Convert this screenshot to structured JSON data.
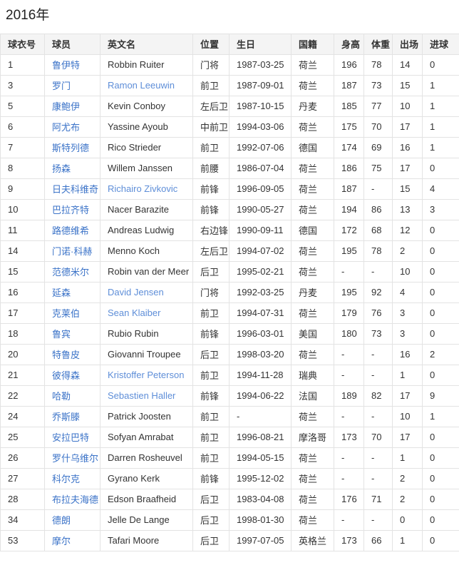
{
  "title": "2016年",
  "colors": {
    "player_link_blue": "#3b73c8",
    "english_link_blue": "#5e8ed8",
    "header_background": "#f4f4f4",
    "table_border": "#e3e3e3",
    "text": "#333333"
  },
  "table": {
    "headers": [
      "球衣号",
      "球员",
      "英文名",
      "位置",
      "生日",
      "国籍",
      "身高",
      "体重",
      "出场",
      "进球"
    ],
    "rows": [
      {
        "jersey": "1",
        "player": "鲁伊特",
        "en_name": "Robbin Ruiter",
        "en_link": false,
        "position": "门将",
        "birthday": "1987-03-25",
        "nationality": "荷兰",
        "height": "196",
        "weight": "78",
        "appearances": "14",
        "goals": "0"
      },
      {
        "jersey": "3",
        "player": "罗门",
        "en_name": "Ramon Leeuwin",
        "en_link": true,
        "position": "前卫",
        "birthday": "1987-09-01",
        "nationality": "荷兰",
        "height": "187",
        "weight": "73",
        "appearances": "15",
        "goals": "1"
      },
      {
        "jersey": "5",
        "player": "康鲍伊",
        "en_name": "Kevin Conboy",
        "en_link": false,
        "position": "左后卫",
        "birthday": "1987-10-15",
        "nationality": "丹麦",
        "height": "185",
        "weight": "77",
        "appearances": "10",
        "goals": "1"
      },
      {
        "jersey": "6",
        "player": "阿尤布",
        "en_name": "Yassine Ayoub",
        "en_link": false,
        "position": "中前卫",
        "birthday": "1994-03-06",
        "nationality": "荷兰",
        "height": "175",
        "weight": "70",
        "appearances": "17",
        "goals": "1"
      },
      {
        "jersey": "7",
        "player": "斯特列德",
        "en_name": "Rico Strieder",
        "en_link": false,
        "position": "前卫",
        "birthday": "1992-07-06",
        "nationality": "德国",
        "height": "174",
        "weight": "69",
        "appearances": "16",
        "goals": "1"
      },
      {
        "jersey": "8",
        "player": "扬森",
        "en_name": "Willem Janssen",
        "en_link": false,
        "position": "前腰",
        "birthday": "1986-07-04",
        "nationality": "荷兰",
        "height": "186",
        "weight": "75",
        "appearances": "17",
        "goals": "0"
      },
      {
        "jersey": "9",
        "player": "日夫科维奇",
        "en_name": "Richairo Zivkovic",
        "en_link": true,
        "position": "前锋",
        "birthday": "1996-09-05",
        "nationality": "荷兰",
        "height": "187",
        "weight": "-",
        "appearances": "15",
        "goals": "4"
      },
      {
        "jersey": "10",
        "player": "巴拉齐特",
        "en_name": "Nacer Barazite",
        "en_link": false,
        "position": "前锋",
        "birthday": "1990-05-27",
        "nationality": "荷兰",
        "height": "194",
        "weight": "86",
        "appearances": "13",
        "goals": "3"
      },
      {
        "jersey": "11",
        "player": "路德维希",
        "en_name": "Andreas Ludwig",
        "en_link": false,
        "position": "右边锋",
        "birthday": "1990-09-11",
        "nationality": "德国",
        "height": "172",
        "weight": "68",
        "appearances": "12",
        "goals": "0"
      },
      {
        "jersey": "14",
        "player": "门诺·科赫",
        "en_name": "Menno Koch",
        "en_link": false,
        "position": "左后卫",
        "birthday": "1994-07-02",
        "nationality": "荷兰",
        "height": "195",
        "weight": "78",
        "appearances": "2",
        "goals": "0"
      },
      {
        "jersey": "15",
        "player": "范德米尔",
        "en_name": "Robin van der Meer",
        "en_link": false,
        "position": "后卫",
        "birthday": "1995-02-21",
        "nationality": "荷兰",
        "height": "-",
        "weight": "-",
        "appearances": "10",
        "goals": "0"
      },
      {
        "jersey": "16",
        "player": "延森",
        "en_name": "David Jensen",
        "en_link": true,
        "position": "门将",
        "birthday": "1992-03-25",
        "nationality": "丹麦",
        "height": "195",
        "weight": "92",
        "appearances": "4",
        "goals": "0"
      },
      {
        "jersey": "17",
        "player": "克莱伯",
        "en_name": "Sean Klaiber",
        "en_link": true,
        "position": "前卫",
        "birthday": "1994-07-31",
        "nationality": "荷兰",
        "height": "179",
        "weight": "76",
        "appearances": "3",
        "goals": "0"
      },
      {
        "jersey": "18",
        "player": "鲁宾",
        "en_name": "Rubio Rubin",
        "en_link": false,
        "position": "前锋",
        "birthday": "1996-03-01",
        "nationality": "美国",
        "height": "180",
        "weight": "73",
        "appearances": "3",
        "goals": "0"
      },
      {
        "jersey": "20",
        "player": "特鲁皮",
        "en_name": "Giovanni Troupee",
        "en_link": false,
        "position": "后卫",
        "birthday": "1998-03-20",
        "nationality": "荷兰",
        "height": "-",
        "weight": "-",
        "appearances": "16",
        "goals": "2"
      },
      {
        "jersey": "21",
        "player": "彼得森",
        "en_name": "Kristoffer Peterson",
        "en_link": true,
        "position": "前卫",
        "birthday": "1994-11-28",
        "nationality": "瑞典",
        "height": "-",
        "weight": "-",
        "appearances": "1",
        "goals": "0"
      },
      {
        "jersey": "22",
        "player": "哈勒",
        "en_name": "Sebastien Haller",
        "en_link": true,
        "position": "前锋",
        "birthday": "1994-06-22",
        "nationality": "法国",
        "height": "189",
        "weight": "82",
        "appearances": "17",
        "goals": "9"
      },
      {
        "jersey": "24",
        "player": "乔斯滕",
        "en_name": "Patrick Joosten",
        "en_link": false,
        "position": "前卫",
        "birthday": "-",
        "nationality": "荷兰",
        "height": "-",
        "weight": "-",
        "appearances": "10",
        "goals": "1"
      },
      {
        "jersey": "25",
        "player": "安拉巴特",
        "en_name": "Sofyan Amrabat",
        "en_link": false,
        "position": "前卫",
        "birthday": "1996-08-21",
        "nationality": "摩洛哥",
        "height": "173",
        "weight": "70",
        "appearances": "17",
        "goals": "0"
      },
      {
        "jersey": "26",
        "player": "罗什乌维尔",
        "en_name": "Darren Rosheuvel",
        "en_link": false,
        "position": "前卫",
        "birthday": "1994-05-15",
        "nationality": "荷兰",
        "height": "-",
        "weight": "-",
        "appearances": "1",
        "goals": "0"
      },
      {
        "jersey": "27",
        "player": "科尔克",
        "en_name": "Gyrano Kerk",
        "en_link": false,
        "position": "前锋",
        "birthday": "1995-12-02",
        "nationality": "荷兰",
        "height": "-",
        "weight": "-",
        "appearances": "2",
        "goals": "0"
      },
      {
        "jersey": "28",
        "player": "布拉夫海德",
        "en_name": "Edson Braafheid",
        "en_link": false,
        "position": "后卫",
        "birthday": "1983-04-08",
        "nationality": "荷兰",
        "height": "176",
        "weight": "71",
        "appearances": "2",
        "goals": "0"
      },
      {
        "jersey": "34",
        "player": "德朗",
        "en_name": "Jelle De Lange",
        "en_link": false,
        "position": "后卫",
        "birthday": "1998-01-30",
        "nationality": "荷兰",
        "height": "-",
        "weight": "-",
        "appearances": "0",
        "goals": "0"
      },
      {
        "jersey": "53",
        "player": "摩尔",
        "en_name": "Tafari Moore",
        "en_link": false,
        "position": "后卫",
        "birthday": "1997-07-05",
        "nationality": "英格兰",
        "height": "173",
        "weight": "66",
        "appearances": "1",
        "goals": "0"
      }
    ]
  }
}
